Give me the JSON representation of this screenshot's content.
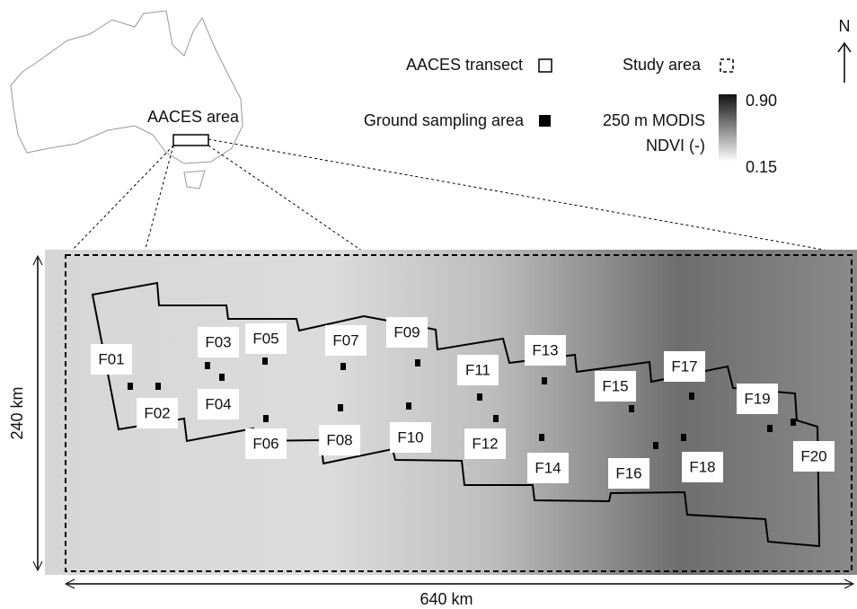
{
  "inset": {
    "label": "AACES area"
  },
  "legend": {
    "transect": "AACES transect",
    "study_area": "Study area",
    "ground_sampling": "Ground sampling area"
  },
  "colorbar": {
    "title_line1": "250 m MODIS",
    "title_line2": "NDVI (-)",
    "max": "0.90",
    "min": "0.15"
  },
  "north": "N",
  "scale": {
    "height": "240 km",
    "width": "640 km"
  },
  "focus_areas": [
    {
      "label": "F01"
    },
    {
      "label": "F02"
    },
    {
      "label": "F03"
    },
    {
      "label": "F04"
    },
    {
      "label": "F05"
    },
    {
      "label": "F06"
    },
    {
      "label": "F07"
    },
    {
      "label": "F08"
    },
    {
      "label": "F09"
    },
    {
      "label": "F10"
    },
    {
      "label": "F11"
    },
    {
      "label": "F12"
    },
    {
      "label": "F13"
    },
    {
      "label": "F14"
    },
    {
      "label": "F15"
    },
    {
      "label": "F16"
    },
    {
      "label": "F17"
    },
    {
      "label": "F18"
    },
    {
      "label": "F19"
    },
    {
      "label": "F20"
    }
  ]
}
